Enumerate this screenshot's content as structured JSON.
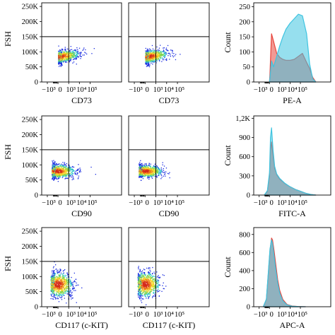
{
  "chart_data": [
    {
      "id": "r0c0",
      "type": "scatter",
      "ylabel": "FSH",
      "xlabel": "CD73",
      "yticks": [
        "250K",
        "200K",
        "150K",
        "100K",
        "50K",
        "0"
      ],
      "xticks": [
        "−10³",
        "0",
        "10³",
        "10⁴",
        "10⁵"
      ],
      "cluster": {
        "xmin": 0,
        "xmax": 4.2,
        "ymin": 65,
        "ymax": 118,
        "core_x": 0.1,
        "core_y": 85,
        "trend": "rising"
      },
      "gate": {
        "x": 1,
        "y": 150
      }
    },
    {
      "id": "r0c1",
      "type": "scatter",
      "ylabel": "",
      "xlabel": "CD73",
      "yticks": [],
      "xticks": [
        "−10³",
        "0",
        "10³",
        "10⁴",
        "10⁵"
      ],
      "cluster": {
        "xmin": 0,
        "xmax": 4.0,
        "ymin": 65,
        "ymax": 120,
        "core_x": 0.3,
        "core_y": 85,
        "trend": "rising"
      },
      "gate": {
        "x": 1,
        "y": 150
      }
    },
    {
      "id": "r0c2",
      "type": "histogram",
      "ylabel": "Count",
      "xlabel": "PE-A",
      "yticks": [
        "250",
        "200",
        "150",
        "100",
        "50",
        "0"
      ],
      "ylim": [
        0,
        250
      ],
      "xticks": [
        "−10³",
        "0",
        "10³",
        "10⁴",
        "10⁵"
      ],
      "series": [
        {
          "color": "#e8453c",
          "x": [
            0,
            0.05,
            0.2,
            0.4,
            0.7,
            1.0,
            1.3,
            1.6,
            2.0,
            2.4,
            2.8,
            3.2,
            3.6,
            3.9,
            4.2,
            4.5
          ],
          "values": [
            0,
            30,
            160,
            135,
            95,
            82,
            75,
            72,
            72,
            75,
            85,
            95,
            65,
            45,
            15,
            0
          ]
        },
        {
          "color": "#3fc4e0",
          "x": [
            0,
            0.05,
            0.2,
            0.4,
            0.7,
            1.0,
            1.3,
            1.6,
            2.0,
            2.4,
            2.8,
            3.2,
            3.6,
            3.9,
            4.2,
            4.5
          ],
          "values": [
            0,
            15,
            70,
            50,
            85,
            120,
            150,
            175,
            195,
            210,
            225,
            220,
            160,
            60,
            10,
            0
          ]
        }
      ]
    },
    {
      "id": "r1c0",
      "type": "scatter",
      "ylabel": "FSH",
      "xlabel": "CD90",
      "yticks": [
        "250K",
        "200K",
        "150K",
        "100K",
        "50K",
        "0"
      ],
      "xticks": [
        "−10³",
        "0",
        "10³",
        "10⁴",
        "10⁵"
      ],
      "cluster": {
        "xmin": -0.6,
        "xmax": 3.2,
        "ymin": 55,
        "ymax": 115,
        "core_x": -0.1,
        "core_y": 80,
        "trend": "flat"
      },
      "gate": {
        "x": 1,
        "y": 150
      }
    },
    {
      "id": "r1c1",
      "type": "scatter",
      "ylabel": "",
      "xlabel": "CD90",
      "yticks": [],
      "xticks": [
        "−10³",
        "0",
        "10³",
        "10⁴",
        "10⁵"
      ],
      "cluster": {
        "xmin": -0.6,
        "xmax": 3.0,
        "ymin": 55,
        "ymax": 110,
        "core_x": 0.0,
        "core_y": 80,
        "trend": "flat"
      },
      "gate": {
        "x": 1,
        "y": 150
      }
    },
    {
      "id": "r1c2",
      "type": "histogram",
      "ylabel": "Count",
      "xlabel": "FITC-A",
      "yticks": [
        "1,2K",
        "900",
        "600",
        "300",
        "0"
      ],
      "ylim": [
        0,
        1200
      ],
      "xticks": [
        "−10³",
        "0",
        "10³",
        "10⁴",
        "10⁵"
      ],
      "series": [
        {
          "color": "#e8453c",
          "x": [
            -0.5,
            -0.2,
            0,
            0.1,
            0.2,
            0.35,
            0.5,
            0.7,
            1.0,
            1.5,
            2.0,
            2.5,
            3.0,
            3.5,
            4.0,
            4.5
          ],
          "values": [
            0,
            60,
            300,
            700,
            830,
            620,
            420,
            320,
            250,
            180,
            130,
            90,
            60,
            30,
            10,
            0
          ]
        },
        {
          "color": "#3fc4e0",
          "x": [
            -0.5,
            -0.2,
            0,
            0.1,
            0.2,
            0.35,
            0.5,
            0.7,
            1.0,
            1.5,
            2.0,
            2.5,
            3.0,
            3.5,
            4.0,
            4.5
          ],
          "values": [
            0,
            70,
            350,
            900,
            1050,
            700,
            450,
            330,
            260,
            185,
            130,
            90,
            60,
            30,
            10,
            0
          ]
        }
      ]
    },
    {
      "id": "r2c0",
      "type": "scatter",
      "ylabel": "FSH",
      "xlabel": "CD117 (c-KIT)",
      "yticks": [
        "250K",
        "200K",
        "150K",
        "100K",
        "50K",
        "0"
      ],
      "xticks": [
        "−10³",
        "0",
        "10³",
        "10⁴",
        "10⁵"
      ],
      "cluster": {
        "xmin": -0.7,
        "xmax": 2.3,
        "ymin": 30,
        "ymax": 140,
        "core_x": 0.0,
        "core_y": 75,
        "trend": "flat"
      },
      "gate": {
        "x": 1,
        "y": 150
      }
    },
    {
      "id": "r2c1",
      "type": "scatter",
      "ylabel": "",
      "xlabel": "CD117 (c-KIT)",
      "yticks": [],
      "xticks": [
        "−10³",
        "0",
        "10³",
        "10⁴",
        "10⁵"
      ],
      "cluster": {
        "xmin": -0.7,
        "xmax": 2.3,
        "ymin": 30,
        "ymax": 140,
        "core_x": 0.0,
        "core_y": 75,
        "trend": "flat"
      },
      "gate": {
        "x": 1,
        "y": 150
      }
    },
    {
      "id": "r2c2",
      "type": "histogram",
      "ylabel": "Count",
      "xlabel": "APC-A",
      "yticks": [
        "800",
        "600",
        "400",
        "200",
        "0"
      ],
      "ylim": [
        0,
        850
      ],
      "xticks": [
        "−10³",
        "0",
        "10³",
        "10⁴",
        "10⁵"
      ],
      "series": [
        {
          "color": "#e8453c",
          "x": [
            -0.6,
            -0.3,
            -0.1,
            0.05,
            0.2,
            0.3,
            0.45,
            0.6,
            0.8,
            1.0,
            1.3,
            1.7,
            2.2,
            2.8,
            3.5
          ],
          "values": [
            0,
            80,
            380,
            620,
            760,
            740,
            620,
            480,
            300,
            180,
            80,
            25,
            8,
            2,
            0
          ]
        },
        {
          "color": "#3fc4e0",
          "x": [
            -0.6,
            -0.3,
            -0.1,
            0.05,
            0.2,
            0.3,
            0.45,
            0.6,
            0.8,
            1.0,
            1.3,
            1.7,
            2.2,
            2.8,
            3.5
          ],
          "values": [
            0,
            85,
            400,
            640,
            740,
            700,
            560,
            420,
            260,
            150,
            65,
            20,
            6,
            2,
            0
          ]
        }
      ]
    }
  ]
}
